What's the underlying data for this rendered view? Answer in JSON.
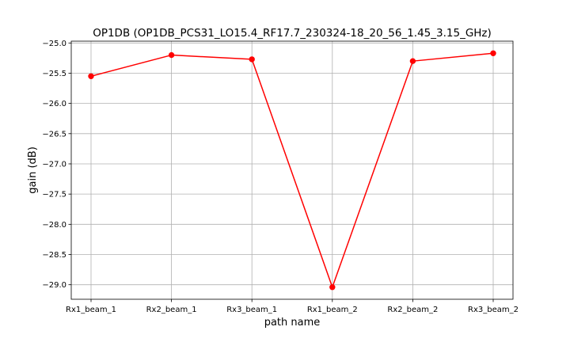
{
  "chart_data": {
    "type": "line",
    "title": "OP1DB (OP1DB_PCS31_LO15.4_RF17.7_230324-18_20_56_1.45_3.15_GHz)",
    "xlabel": "path name",
    "ylabel": "gain (dB)",
    "categories": [
      "Rx1_beam_1",
      "Rx2_beam_1",
      "Rx3_beam_1",
      "Rx1_beam_2",
      "Rx2_beam_2",
      "Rx3_beam_2"
    ],
    "series": [
      {
        "values": [
          -25.55,
          -25.2,
          -25.27,
          -29.04,
          -25.3,
          -25.17
        ],
        "color": "#ff0000",
        "marker": "circle"
      }
    ],
    "ylim": [
      -29.24,
      -24.97
    ],
    "yticks": [
      -25.0,
      -25.5,
      -26.0,
      -26.5,
      -27.0,
      -27.5,
      -28.0,
      -28.5,
      -29.0
    ],
    "ytick_labels": [
      "−25.0",
      "−25.5",
      "−26.0",
      "−26.5",
      "−27.0",
      "−27.5",
      "−28.0",
      "−28.5",
      "−29.0"
    ],
    "grid": true,
    "legend": "none"
  }
}
